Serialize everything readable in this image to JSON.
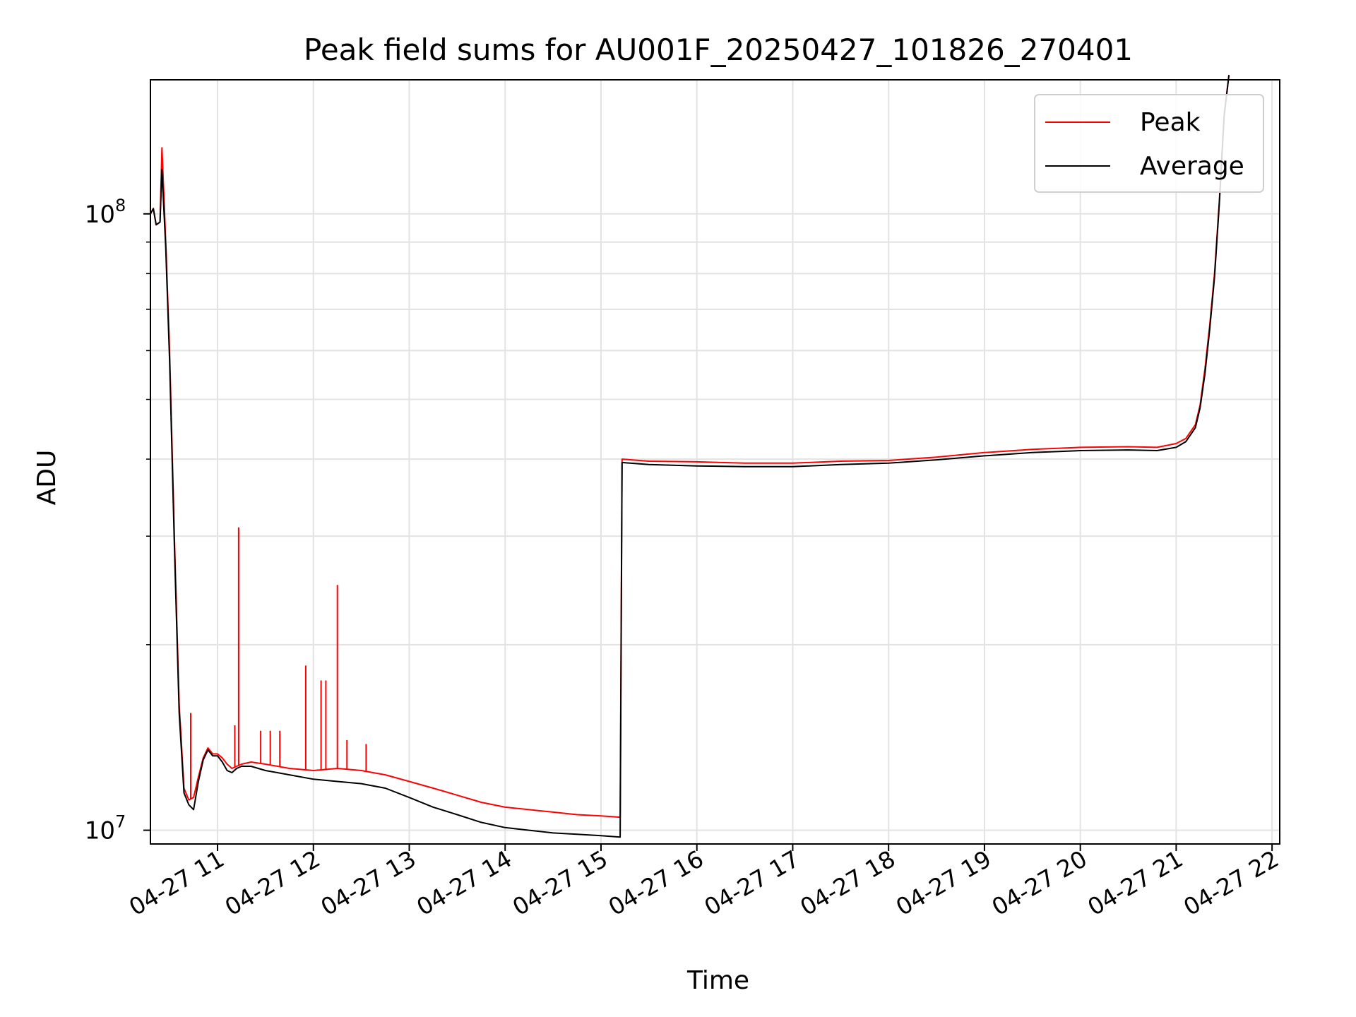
{
  "chart_data": {
    "type": "line",
    "title": "Peak field sums for AU001F_20250427_101826_270401",
    "xlabel": "Time",
    "ylabel": "ADU",
    "yscale": "log",
    "ylim": [
      9500000,
      165000000
    ],
    "xlim": [
      "2025-04-27 10:18",
      "2025-04-27 22:05"
    ],
    "grid": true,
    "legend_position": "top-right",
    "x_tick_labels": [
      "04-27 11",
      "04-27 12",
      "04-27 13",
      "04-27 14",
      "04-27 15",
      "04-27 16",
      "04-27 17",
      "04-27 18",
      "04-27 19",
      "04-27 20",
      "04-27 21",
      "04-27 22"
    ],
    "y_tick_labels": [
      "10^7",
      "10^8"
    ],
    "x_unit": "hours after 2025-04-27 00:00",
    "series": [
      {
        "name": "Peak",
        "color": "#ff0000",
        "points": [
          [
            10.3,
            100000000.0
          ],
          [
            10.33,
            102000000.0
          ],
          [
            10.36,
            96000000.0
          ],
          [
            10.4,
            97000000.0
          ],
          [
            10.42,
            128000000.0
          ],
          [
            10.46,
            90000000.0
          ],
          [
            10.5,
            60000000.0
          ],
          [
            10.55,
            30000000.0
          ],
          [
            10.6,
            16000000.0
          ],
          [
            10.65,
            11700000.0
          ],
          [
            10.7,
            11200000.0
          ],
          [
            10.75,
            11300000.0
          ],
          [
            10.8,
            12200000.0
          ],
          [
            10.85,
            13100000.0
          ],
          [
            10.9,
            13600000.0
          ],
          [
            10.95,
            13300000.0
          ],
          [
            11.0,
            13300000.0
          ],
          [
            11.05,
            13100000.0
          ],
          [
            11.1,
            12800000.0
          ],
          [
            11.15,
            12600000.0
          ],
          [
            11.2,
            12700000.0
          ],
          [
            11.25,
            12800000.0
          ],
          [
            11.35,
            12900000.0
          ],
          [
            11.5,
            12800000.0
          ],
          [
            11.75,
            12600000.0
          ],
          [
            12.0,
            12500000.0
          ],
          [
            12.25,
            12600000.0
          ],
          [
            12.5,
            12500000.0
          ],
          [
            12.75,
            12300000.0
          ],
          [
            13.0,
            12000000.0
          ],
          [
            13.25,
            11700000.0
          ],
          [
            13.5,
            11400000.0
          ],
          [
            13.75,
            11100000.0
          ],
          [
            14.0,
            10900000.0
          ],
          [
            14.25,
            10800000.0
          ],
          [
            14.5,
            10700000.0
          ],
          [
            14.75,
            10600000.0
          ],
          [
            15.0,
            10550000.0
          ],
          [
            15.2,
            10500000.0
          ],
          [
            15.22,
            40000000.0
          ],
          [
            15.5,
            39700000.0
          ],
          [
            16.0,
            39600000.0
          ],
          [
            16.5,
            39400000.0
          ],
          [
            17.0,
            39400000.0
          ],
          [
            17.5,
            39700000.0
          ],
          [
            18.0,
            39800000.0
          ],
          [
            18.5,
            40300000.0
          ],
          [
            19.0,
            41000000.0
          ],
          [
            19.5,
            41500000.0
          ],
          [
            20.0,
            41800000.0
          ],
          [
            20.5,
            41900000.0
          ],
          [
            20.8,
            41800000.0
          ],
          [
            21.0,
            42400000.0
          ],
          [
            21.1,
            43200000.0
          ],
          [
            21.2,
            45500000.0
          ],
          [
            21.25,
            49000000.0
          ],
          [
            21.3,
            56000000.0
          ],
          [
            21.35,
            66000000.0
          ],
          [
            21.4,
            80000000.0
          ],
          [
            21.45,
            105000000.0
          ],
          [
            21.5,
            145000000.0
          ],
          [
            21.55,
            168000000.0
          ]
        ],
        "spikes": [
          [
            10.72,
            15500000.0
          ],
          [
            11.18,
            14800000.0
          ],
          [
            11.22,
            31000000.0
          ],
          [
            11.45,
            14500000.0
          ],
          [
            11.55,
            14500000.0
          ],
          [
            11.65,
            14500000.0
          ],
          [
            11.92,
            18500000.0
          ],
          [
            12.08,
            17500000.0
          ],
          [
            12.13,
            17500000.0
          ],
          [
            12.25,
            25000000.0
          ],
          [
            12.35,
            14000000.0
          ],
          [
            12.55,
            13800000.0
          ]
        ]
      },
      {
        "name": "Average",
        "color": "#000000",
        "points": [
          [
            10.3,
            100000000.0
          ],
          [
            10.33,
            102000000.0
          ],
          [
            10.36,
            96000000.0
          ],
          [
            10.4,
            97000000.0
          ],
          [
            10.42,
            118000000.0
          ],
          [
            10.46,
            88000000.0
          ],
          [
            10.5,
            58000000.0
          ],
          [
            10.55,
            29000000.0
          ],
          [
            10.6,
            15500000.0
          ],
          [
            10.65,
            11500000.0
          ],
          [
            10.7,
            11000000.0
          ],
          [
            10.75,
            10800000.0
          ],
          [
            10.8,
            12000000.0
          ],
          [
            10.85,
            13000000.0
          ],
          [
            10.9,
            13500000.0
          ],
          [
            10.95,
            13200000.0
          ],
          [
            11.0,
            13200000.0
          ],
          [
            11.05,
            12900000.0
          ],
          [
            11.1,
            12500000.0
          ],
          [
            11.15,
            12400000.0
          ],
          [
            11.2,
            12600000.0
          ],
          [
            11.25,
            12700000.0
          ],
          [
            11.35,
            12700000.0
          ],
          [
            11.5,
            12500000.0
          ],
          [
            11.75,
            12300000.0
          ],
          [
            12.0,
            12100000.0
          ],
          [
            12.25,
            12000000.0
          ],
          [
            12.5,
            11900000.0
          ],
          [
            12.75,
            11700000.0
          ],
          [
            13.0,
            11300000.0
          ],
          [
            13.25,
            10900000.0
          ],
          [
            13.5,
            10600000.0
          ],
          [
            13.75,
            10300000.0
          ],
          [
            14.0,
            10100000.0
          ],
          [
            14.25,
            10000000.0
          ],
          [
            14.5,
            9900000.0
          ],
          [
            14.75,
            9850000.0
          ],
          [
            15.0,
            9800000.0
          ],
          [
            15.2,
            9750000.0
          ],
          [
            15.22,
            39500000.0
          ],
          [
            15.5,
            39200000.0
          ],
          [
            16.0,
            39000000.0
          ],
          [
            16.5,
            38900000.0
          ],
          [
            17.0,
            38900000.0
          ],
          [
            17.5,
            39200000.0
          ],
          [
            18.0,
            39400000.0
          ],
          [
            18.5,
            39900000.0
          ],
          [
            19.0,
            40500000.0
          ],
          [
            19.5,
            41000000.0
          ],
          [
            20.0,
            41300000.0
          ],
          [
            20.5,
            41400000.0
          ],
          [
            20.8,
            41300000.0
          ],
          [
            21.0,
            41800000.0
          ],
          [
            21.1,
            42700000.0
          ],
          [
            21.2,
            45000000.0
          ],
          [
            21.25,
            48500000.0
          ],
          [
            21.3,
            55000000.0
          ],
          [
            21.35,
            65000000.0
          ],
          [
            21.4,
            79000000.0
          ],
          [
            21.45,
            104000000.0
          ],
          [
            21.5,
            144000000.0
          ],
          [
            21.55,
            168000000.0
          ]
        ]
      }
    ]
  }
}
